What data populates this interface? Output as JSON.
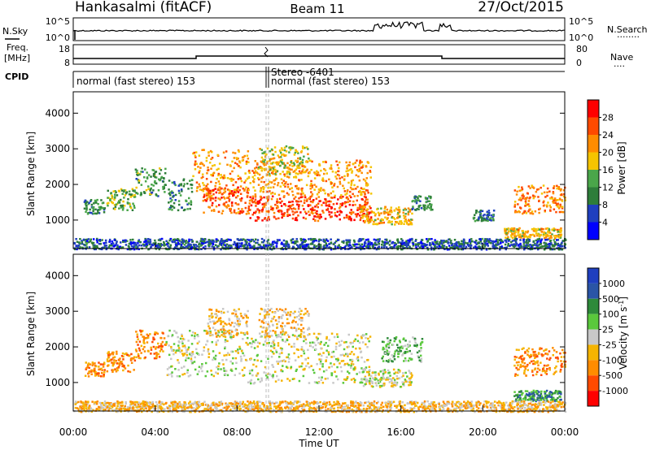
{
  "header": {
    "station": "Hankasalmi (fitACF)",
    "beam": "Beam 11",
    "date": "27/Oct/2015"
  },
  "nsky_panel": {
    "left_label": "N.Sky",
    "right_label": "N.Search",
    "right_dots": "........",
    "left_ticks": [
      "10^5",
      "10^0"
    ],
    "right_ticks": [
      "10^5",
      "10^0"
    ]
  },
  "freq_panel": {
    "left_label_top": "Freq.",
    "left_label_unit": "[MHz]",
    "right_label": "Nave",
    "right_dots": "....",
    "left_ticks": [
      "18",
      "8"
    ],
    "right_ticks": [
      "80",
      "0"
    ]
  },
  "cpid": {
    "label": "CPID",
    "segments": [
      "normal (fast stereo) 153",
      "Stereo -6401",
      "normal (fast stereo) 153"
    ]
  },
  "colors": {
    "power": [
      "#0000ff",
      "#1f3fbf",
      "#2e7d3a",
      "#4aa64a",
      "#f5c400",
      "#ff8c00",
      "#ff4a00",
      "#ff0000"
    ],
    "velocity": [
      "#ff0000",
      "#ff4a00",
      "#ff8c00",
      "#f5b400",
      "#c8c8c8",
      "#5ac83c",
      "#2e8a3a",
      "#2a55a6",
      "#1f3fbf"
    ],
    "gray": "#c8c8c8"
  },
  "chart_data": [
    {
      "type": "heatmap",
      "title": "Power",
      "ylabel": "Slant Range [km]",
      "ylim": [
        200,
        4600
      ],
      "yticks": [
        1000,
        2000,
        3000,
        4000
      ],
      "xlim": [
        0,
        24
      ],
      "colorbar_label": "Power [dB]",
      "colorbar_ticks": [
        "28",
        "24",
        "20",
        "16",
        "12",
        "8",
        "4"
      ],
      "colorbar_range": [
        0,
        32
      ],
      "regions": [
        {
          "t": [
            0.5,
            1.5
          ],
          "r": [
            1200,
            1600
          ],
          "level": 10
        },
        {
          "t": [
            1.6,
            3.0
          ],
          "r": [
            1300,
            1900
          ],
          "level": 14
        },
        {
          "t": [
            3.0,
            4.5
          ],
          "r": [
            1700,
            2500
          ],
          "level": 12
        },
        {
          "t": [
            4.6,
            5.8
          ],
          "r": [
            1300,
            2200
          ],
          "level": 10
        },
        {
          "t": [
            5.8,
            8.5
          ],
          "r": [
            1700,
            3000
          ],
          "level": 22
        },
        {
          "t": [
            6.3,
            8.5
          ],
          "r": [
            1200,
            2000
          ],
          "level": 26
        },
        {
          "t": [
            8.5,
            14.5
          ],
          "r": [
            1000,
            1700
          ],
          "level": 28
        },
        {
          "t": [
            8.5,
            14.5
          ],
          "r": [
            1700,
            2700
          ],
          "level": 22
        },
        {
          "t": [
            9.0,
            11.5
          ],
          "r": [
            2300,
            3100
          ],
          "level": 18
        },
        {
          "t": [
            14.0,
            16.5
          ],
          "r": [
            900,
            1400
          ],
          "level": 20
        },
        {
          "t": [
            16.5,
            17.5
          ],
          "r": [
            1300,
            1700
          ],
          "level": 10
        },
        {
          "t": [
            19.5,
            20.5
          ],
          "r": [
            1000,
            1300
          ],
          "level": 8
        },
        {
          "t": [
            21.5,
            24.0
          ],
          "r": [
            1200,
            2000
          ],
          "level": 24
        },
        {
          "t": [
            21.0,
            23.8
          ],
          "r": [
            500,
            800
          ],
          "level": 20
        },
        {
          "t": [
            0.0,
            24.0
          ],
          "r": [
            200,
            500
          ],
          "level": 6
        }
      ]
    },
    {
      "type": "heatmap",
      "title": "Velocity",
      "ylabel": "Slant Range [km]",
      "ylim": [
        200,
        4600
      ],
      "yticks": [
        1000,
        2000,
        3000,
        4000
      ],
      "xlim": [
        0,
        24
      ],
      "xlabel": "Time UT",
      "xticks": [
        "00:00",
        "04:00",
        "08:00",
        "12:00",
        "16:00",
        "20:00",
        "00:00"
      ],
      "colorbar_label": "Velocity [m s-1]",
      "colorbar_ticks": [
        "1000",
        "500",
        "100",
        "25",
        "-25",
        "-100",
        "-500",
        "-1000"
      ],
      "regions": [
        {
          "t": [
            0.5,
            1.5
          ],
          "r": [
            1200,
            1600
          ],
          "level": 2
        },
        {
          "t": [
            1.6,
            3.0
          ],
          "r": [
            1300,
            1900
          ],
          "level": 2
        },
        {
          "t": [
            3.0,
            4.5
          ],
          "r": [
            1700,
            2500
          ],
          "level": 2
        },
        {
          "t": [
            4.5,
            8.5
          ],
          "r": [
            1200,
            2500
          ],
          "level": 4
        },
        {
          "t": [
            6.5,
            8.5
          ],
          "r": [
            2300,
            3100
          ],
          "level": 3
        },
        {
          "t": [
            8.5,
            14.5
          ],
          "r": [
            1000,
            2400
          ],
          "level": 4
        },
        {
          "t": [
            9.0,
            11.5
          ],
          "r": [
            2300,
            3100
          ],
          "level": 3
        },
        {
          "t": [
            14.0,
            16.5
          ],
          "r": [
            900,
            1400
          ],
          "level": 4
        },
        {
          "t": [
            15.0,
            17.0
          ],
          "r": [
            1600,
            2300
          ],
          "level": 5
        },
        {
          "t": [
            21.5,
            24.0
          ],
          "r": [
            1200,
            2000
          ],
          "level": 2
        },
        {
          "t": [
            21.5,
            23.8
          ],
          "r": [
            500,
            800
          ],
          "level": 6
        },
        {
          "t": [
            0.0,
            24.0
          ],
          "r": [
            200,
            500
          ],
          "level": 3
        }
      ]
    }
  ]
}
